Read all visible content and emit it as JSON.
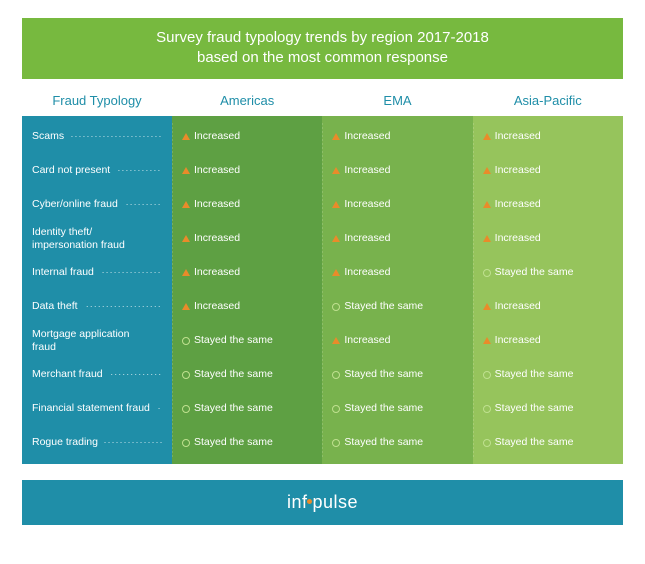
{
  "title_line1": "Survey fraud typology trends by region 2017-2018",
  "title_line2": "based on the most common response",
  "headers": {
    "typology": "Fraud Typology",
    "regions": [
      "Americas",
      "EMA",
      "Asia-Pacific"
    ]
  },
  "typologies": [
    "Scams",
    "Card not present",
    "Cyber/online fraud",
    "Identity theft/ impersonation fraud",
    "Internal fraud",
    "Data theft",
    "Mortgage application fraud",
    "Merchant fraud",
    "Financial statement fraud",
    "Rogue trading"
  ],
  "values": {
    "increased_label": "Increased",
    "same_label": "Stayed the same"
  },
  "grid": [
    [
      "inc",
      "inc",
      "inc"
    ],
    [
      "inc",
      "inc",
      "inc"
    ],
    [
      "inc",
      "inc",
      "inc"
    ],
    [
      "inc",
      "inc",
      "inc"
    ],
    [
      "inc",
      "inc",
      "same"
    ],
    [
      "inc",
      "same",
      "inc"
    ],
    [
      "same",
      "inc",
      "inc"
    ],
    [
      "same",
      "same",
      "same"
    ],
    [
      "same",
      "same",
      "same"
    ],
    [
      "same",
      "same",
      "same"
    ]
  ],
  "colors": {
    "title_bg": "#77b93f",
    "header_text": "#1f8ea8",
    "typology_bg": "#1f8ea8",
    "region_bgs": [
      "#5ea043",
      "#78b24d",
      "#96c45c"
    ],
    "increased_icon": "#e98b2a",
    "same_icon": "#bfe08f",
    "footer_bg": "#1f8ea8",
    "footer_dot": "#e98b2a",
    "text_white": "#ffffff"
  },
  "footer_brand_pre": "inf",
  "footer_brand_post": "pulse"
}
